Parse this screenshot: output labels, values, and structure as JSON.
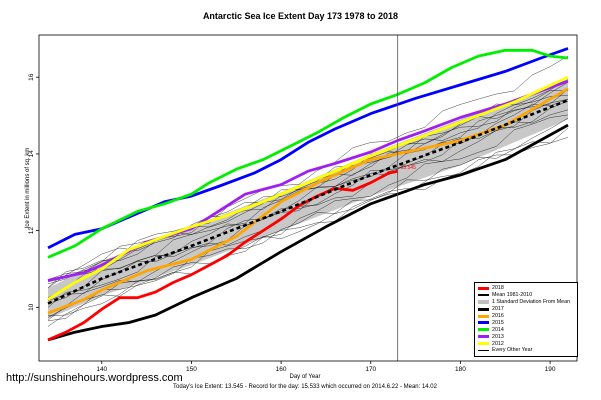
{
  "page": {
    "title": "Antarctic Sea Ice Extent Day 173 1978 to 2018",
    "ylabel": "Ice Extent in millions of sq. km",
    "xlabel": "Day of Year",
    "watermark": "http://sunshinehours.wordpress.com",
    "footer": "Today's Ice Extent: 13.545  -  Record for the day: 15.533 which occurred on 2014.6.22  -  Mean: 14.02"
  },
  "legend": [
    {
      "label": "2018",
      "color": "#ff0000",
      "style": "thick"
    },
    {
      "label": "Mean 1981-2010",
      "color": "#000000",
      "style": "dash"
    },
    {
      "label": "1 Standard Deviation From Mean",
      "color": "#bfbfbf",
      "style": "band"
    },
    {
      "label": "2017",
      "color": "#000000",
      "style": "thick"
    },
    {
      "label": "2016",
      "color": "#ffa500",
      "style": "thick"
    },
    {
      "label": "2015",
      "color": "#0000ff",
      "style": "thick"
    },
    {
      "label": "2014",
      "color": "#00ee00",
      "style": "thick"
    },
    {
      "label": "2013",
      "color": "#a020f0",
      "style": "thick"
    },
    {
      "label": "2012",
      "color": "#ffff00",
      "style": "thick"
    },
    {
      "label": "Every Other Year",
      "color": "#000000",
      "style": "thin"
    }
  ],
  "chart_data": {
    "type": "line",
    "title": "Antarctic Sea Ice Extent Day 173 1978 to 2018",
    "xlabel": "Day of Year",
    "ylabel": "Ice Extent in millions of sq. km",
    "xlim": [
      133,
      193
    ],
    "ylim": [
      8.6,
      17.1
    ],
    "xticks": [
      140,
      150,
      160,
      170,
      180,
      190
    ],
    "yticks": [
      10,
      12,
      14,
      16
    ],
    "current_day": 173,
    "current_day_label": "13.545",
    "std_band": {
      "x": [
        134,
        140,
        150,
        160,
        170,
        180,
        192
      ],
      "lower": [
        9.7,
        10.3,
        11.1,
        12.0,
        12.9,
        13.7,
        14.9
      ],
      "upper": [
        10.5,
        11.2,
        12.1,
        13.0,
        14.0,
        14.9,
        15.9
      ]
    },
    "every_other_year": {
      "x": [
        134,
        140,
        150,
        160,
        170,
        180,
        192
      ],
      "offsets": [
        -1.15,
        -0.85,
        -0.65,
        -0.45,
        -0.3,
        -0.15,
        0.0,
        0.12,
        0.25,
        0.4,
        0.55,
        0.75,
        0.95,
        1.2
      ]
    },
    "series": [
      {
        "name": "Mean 1981-2010",
        "color": "#000000",
        "dash": true,
        "x": [
          134,
          140,
          150,
          160,
          170,
          180,
          192
        ],
        "values": [
          10.1,
          10.75,
          11.6,
          12.5,
          13.45,
          14.3,
          15.4
        ]
      },
      {
        "name": "2017",
        "color": "#000000",
        "x": [
          134,
          137,
          140,
          143,
          146,
          150,
          155,
          160,
          165,
          170,
          173,
          176,
          180,
          185,
          192
        ],
        "values": [
          9.15,
          9.35,
          9.5,
          9.6,
          9.8,
          10.25,
          10.75,
          11.45,
          12.1,
          12.7,
          12.95,
          13.2,
          13.45,
          13.85,
          14.75
        ]
      },
      {
        "name": "2016",
        "color": "#ffa500",
        "x": [
          134,
          138,
          140,
          145,
          150,
          155,
          160,
          165,
          170,
          175,
          180,
          185,
          192
        ],
        "values": [
          9.85,
          10.2,
          10.45,
          10.95,
          11.25,
          11.85,
          12.75,
          13.35,
          13.85,
          14.1,
          14.35,
          14.75,
          15.7
        ]
      },
      {
        "name": "2015",
        "color": "#0000ff",
        "x": [
          134,
          137,
          140,
          143,
          147,
          150,
          153,
          157,
          160,
          163,
          166,
          170,
          175,
          180,
          185,
          189,
          192
        ],
        "values": [
          11.55,
          11.9,
          12.05,
          12.35,
          12.75,
          12.9,
          13.15,
          13.5,
          13.85,
          14.3,
          14.65,
          15.05,
          15.45,
          15.8,
          16.15,
          16.5,
          16.75
        ]
      },
      {
        "name": "2014",
        "color": "#00ee00",
        "x": [
          134,
          137,
          140,
          144,
          147,
          150,
          152,
          155,
          158,
          161,
          164,
          167,
          170,
          173,
          176,
          179,
          182,
          185,
          188,
          190,
          192
        ],
        "values": [
          11.3,
          11.6,
          12.05,
          12.5,
          12.7,
          12.95,
          13.25,
          13.6,
          13.85,
          14.2,
          14.55,
          14.95,
          15.3,
          15.55,
          15.85,
          16.25,
          16.55,
          16.7,
          16.7,
          16.55,
          16.5
        ]
      },
      {
        "name": "2013",
        "color": "#a020f0",
        "x": [
          134,
          138,
          140,
          145,
          150,
          153,
          156,
          160,
          163,
          166,
          170,
          173,
          176,
          180,
          185,
          192
        ],
        "values": [
          10.7,
          10.9,
          11.1,
          11.7,
          12.05,
          12.5,
          12.95,
          13.2,
          13.55,
          13.75,
          14.05,
          14.35,
          14.6,
          14.95,
          15.3,
          15.9
        ]
      },
      {
        "name": "2012",
        "color": "#ffff00",
        "x": [
          134,
          137,
          140,
          143,
          147,
          150,
          154,
          158,
          162,
          166,
          170,
          174,
          178,
          182,
          186,
          192
        ],
        "values": [
          10.2,
          10.65,
          11.0,
          11.5,
          11.85,
          12.1,
          12.4,
          12.75,
          13.15,
          13.55,
          13.95,
          14.3,
          14.65,
          15.0,
          15.35,
          16.0
        ]
      },
      {
        "name": "2018",
        "color": "#ff0000",
        "x": [
          134,
          136,
          138,
          140,
          142,
          144,
          146,
          148,
          150,
          152,
          154,
          156,
          158,
          160,
          162,
          164,
          166,
          168,
          170,
          172,
          173
        ],
        "values": [
          9.15,
          9.35,
          9.6,
          9.95,
          10.25,
          10.25,
          10.4,
          10.65,
          10.85,
          11.1,
          11.35,
          11.7,
          12.0,
          12.3,
          12.65,
          12.9,
          13.1,
          13.05,
          13.25,
          13.5,
          13.545
        ]
      }
    ]
  }
}
